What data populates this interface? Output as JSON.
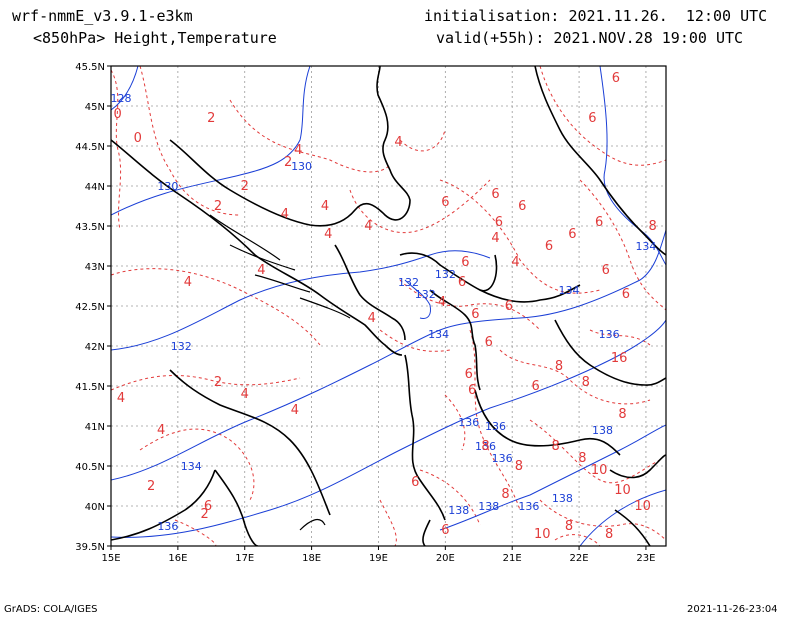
{
  "header": {
    "model": "wrf-nmmE_v3.9.1-e3km",
    "field": "<850hPa> Height,Temperature",
    "init": "initialisation: 2021.11.26.  12:00 UTC",
    "valid": "valid(+55h): 2021.NOV.28 19:00 UTC"
  },
  "footer": {
    "left": "GrADS: COLA/IGES",
    "right": "2021-11-26-23:04"
  },
  "map": {
    "lon_range": [
      15,
      23.3
    ],
    "lat_range": [
      39.5,
      45.5
    ],
    "x_ticks": [
      "15E",
      "16E",
      "17E",
      "18E",
      "19E",
      "20E",
      "21E",
      "22E",
      "23E"
    ],
    "y_ticks": [
      "39.5N",
      "40N",
      "40.5N",
      "41N",
      "41.5N",
      "42N",
      "42.5N",
      "43N",
      "43.5N",
      "44N",
      "44.5N",
      "45N",
      "45.5N"
    ],
    "height_color": "#1b3fd6",
    "temperature_color": "#e23a3a",
    "height_labels": [
      {
        "text": "128",
        "lon": 15.15,
        "lat": 45.05
      },
      {
        "text": "130",
        "lon": 15.85,
        "lat": 43.95
      },
      {
        "text": "130",
        "lon": 17.85,
        "lat": 44.2
      },
      {
        "text": "132",
        "lon": 19.45,
        "lat": 42.75
      },
      {
        "text": "132",
        "lon": 20.0,
        "lat": 42.85
      },
      {
        "text": "132",
        "lon": 19.7,
        "lat": 42.6
      },
      {
        "text": "132",
        "lon": 16.05,
        "lat": 41.95
      },
      {
        "text": "134",
        "lon": 19.9,
        "lat": 42.1
      },
      {
        "text": "134",
        "lon": 16.2,
        "lat": 40.45
      },
      {
        "text": "134",
        "lon": 21.85,
        "lat": 42.65
      },
      {
        "text": "134",
        "lon": 23.0,
        "lat": 43.2
      },
      {
        "text": "136",
        "lon": 15.85,
        "lat": 39.7
      },
      {
        "text": "136",
        "lon": 20.35,
        "lat": 41.0
      },
      {
        "text": "136",
        "lon": 20.75,
        "lat": 40.95
      },
      {
        "text": "136",
        "lon": 20.85,
        "lat": 40.55
      },
      {
        "text": "136",
        "lon": 20.6,
        "lat": 40.7
      },
      {
        "text": "136",
        "lon": 21.25,
        "lat": 39.95
      },
      {
        "text": "136",
        "lon": 22.45,
        "lat": 42.1
      },
      {
        "text": "138",
        "lon": 20.2,
        "lat": 39.9
      },
      {
        "text": "138",
        "lon": 20.65,
        "lat": 39.95
      },
      {
        "text": "138",
        "lon": 21.75,
        "lat": 40.05
      },
      {
        "text": "138",
        "lon": 22.35,
        "lat": 40.9
      }
    ],
    "temperature_labels": [
      {
        "text": "0",
        "lon": 15.1,
        "lat": 44.85
      },
      {
        "text": "0",
        "lon": 15.4,
        "lat": 44.55
      },
      {
        "text": "2",
        "lon": 16.5,
        "lat": 44.8
      },
      {
        "text": "2",
        "lon": 17.0,
        "lat": 43.95
      },
      {
        "text": "2",
        "lon": 16.6,
        "lat": 43.7
      },
      {
        "text": "2",
        "lon": 17.65,
        "lat": 44.25
      },
      {
        "text": "2",
        "lon": 16.6,
        "lat": 41.5
      },
      {
        "text": "2",
        "lon": 16.4,
        "lat": 39.85
      },
      {
        "text": "2",
        "lon": 15.6,
        "lat": 40.2
      },
      {
        "text": "4",
        "lon": 17.8,
        "lat": 44.4
      },
      {
        "text": "4",
        "lon": 19.3,
        "lat": 44.5
      },
      {
        "text": "4",
        "lon": 17.6,
        "lat": 43.6
      },
      {
        "text": "4",
        "lon": 18.2,
        "lat": 43.7
      },
      {
        "text": "4",
        "lon": 18.25,
        "lat": 43.35
      },
      {
        "text": "4",
        "lon": 18.85,
        "lat": 43.45
      },
      {
        "text": "4",
        "lon": 16.15,
        "lat": 42.75
      },
      {
        "text": "4",
        "lon": 17.25,
        "lat": 42.9
      },
      {
        "text": "4",
        "lon": 15.15,
        "lat": 41.3
      },
      {
        "text": "4",
        "lon": 17.0,
        "lat": 41.35
      },
      {
        "text": "4",
        "lon": 17.75,
        "lat": 41.15
      },
      {
        "text": "4",
        "lon": 15.75,
        "lat": 40.9
      },
      {
        "text": "4",
        "lon": 18.9,
        "lat": 42.3
      },
      {
        "text": "4",
        "lon": 19.95,
        "lat": 42.5
      },
      {
        "text": "4",
        "lon": 20.75,
        "lat": 43.3
      },
      {
        "text": "4",
        "lon": 21.05,
        "lat": 43.0
      },
      {
        "text": "6",
        "lon": 20.75,
        "lat": 43.85
      },
      {
        "text": "6",
        "lon": 20.8,
        "lat": 43.5
      },
      {
        "text": "6",
        "lon": 20.0,
        "lat": 43.75
      },
      {
        "text": "6",
        "lon": 21.15,
        "lat": 43.7
      },
      {
        "text": "6",
        "lon": 21.9,
        "lat": 43.35
      },
      {
        "text": "6",
        "lon": 22.3,
        "lat": 43.5
      },
      {
        "text": "6",
        "lon": 22.4,
        "lat": 42.9
      },
      {
        "text": "6",
        "lon": 22.7,
        "lat": 42.6
      },
      {
        "text": "6",
        "lon": 21.55,
        "lat": 43.2
      },
      {
        "text": "6",
        "lon": 20.3,
        "lat": 43.0
      },
      {
        "text": "6",
        "lon": 20.25,
        "lat": 42.75
      },
      {
        "text": "6",
        "lon": 20.45,
        "lat": 42.35
      },
      {
        "text": "6",
        "lon": 20.35,
        "lat": 41.6
      },
      {
        "text": "6",
        "lon": 20.4,
        "lat": 41.4
      },
      {
        "text": "6",
        "lon": 20.65,
        "lat": 42.0
      },
      {
        "text": "6",
        "lon": 20.95,
        "lat": 42.45
      },
      {
        "text": "6",
        "lon": 21.35,
        "lat": 41.45
      },
      {
        "text": "6",
        "lon": 20.0,
        "lat": 39.65
      },
      {
        "text": "6",
        "lon": 19.55,
        "lat": 40.25
      },
      {
        "text": "6",
        "lon": 16.45,
        "lat": 39.95
      },
      {
        "text": "6",
        "lon": 22.55,
        "lat": 45.3
      },
      {
        "text": "6",
        "lon": 22.2,
        "lat": 44.8
      },
      {
        "text": "8",
        "lon": 21.7,
        "lat": 41.7
      },
      {
        "text": "8",
        "lon": 22.1,
        "lat": 41.5
      },
      {
        "text": "8",
        "lon": 21.65,
        "lat": 40.7
      },
      {
        "text": "8",
        "lon": 22.05,
        "lat": 40.55
      },
      {
        "text": "8",
        "lon": 22.65,
        "lat": 41.1
      },
      {
        "text": "8",
        "lon": 20.9,
        "lat": 40.1
      },
      {
        "text": "8",
        "lon": 21.1,
        "lat": 40.45
      },
      {
        "text": "8",
        "lon": 21.85,
        "lat": 39.7
      },
      {
        "text": "8",
        "lon": 22.45,
        "lat": 39.6
      },
      {
        "text": "8",
        "lon": 23.1,
        "lat": 43.45
      },
      {
        "text": "8",
        "lon": 20.6,
        "lat": 40.7
      },
      {
        "text": "10",
        "lon": 22.3,
        "lat": 40.4
      },
      {
        "text": "10",
        "lon": 22.65,
        "lat": 40.15
      },
      {
        "text": "10",
        "lon": 22.95,
        "lat": 39.95
      },
      {
        "text": "10",
        "lon": 21.45,
        "lat": 39.6
      },
      {
        "text": "16",
        "lon": 22.6,
        "lat": 41.8
      }
    ]
  }
}
